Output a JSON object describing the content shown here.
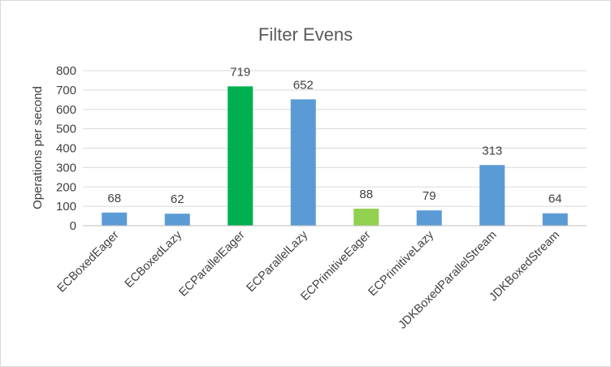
{
  "chart_data": {
    "type": "bar",
    "title": "Filter Evens",
    "ylabel": "Operations per second",
    "xlabel": "",
    "ylim": [
      0,
      800
    ],
    "yticks": [
      0,
      100,
      200,
      300,
      400,
      500,
      600,
      700,
      800
    ],
    "grid": true,
    "legend": "none",
    "categories": [
      "ECBoxedEager",
      "ECBoxedLazy",
      "ECParallelEager",
      "ECParallelLazy",
      "ECPrimitiveEager",
      "ECPrimitiveLazy",
      "JDKBoxedParallelStream",
      "JDKBoxedStream"
    ],
    "values": [
      68,
      62,
      719,
      652,
      88,
      79,
      313,
      64
    ],
    "colors": [
      "#5b9bd5",
      "#5b9bd5",
      "#00b050",
      "#5b9bd5",
      "#92d050",
      "#5b9bd5",
      "#5b9bd5",
      "#5b9bd5"
    ]
  }
}
